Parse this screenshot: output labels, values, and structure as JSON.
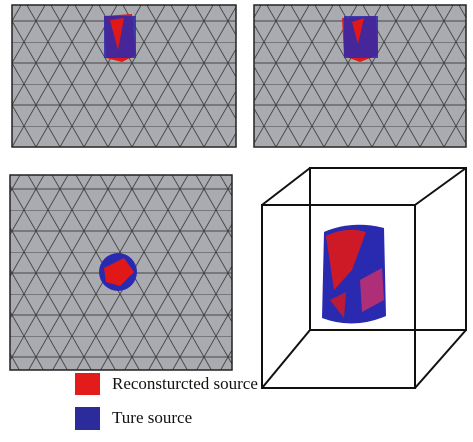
{
  "legend": {
    "items": [
      {
        "label": "Reconsturcted source"
      },
      {
        "label": "Ture source"
      }
    ]
  }
}
